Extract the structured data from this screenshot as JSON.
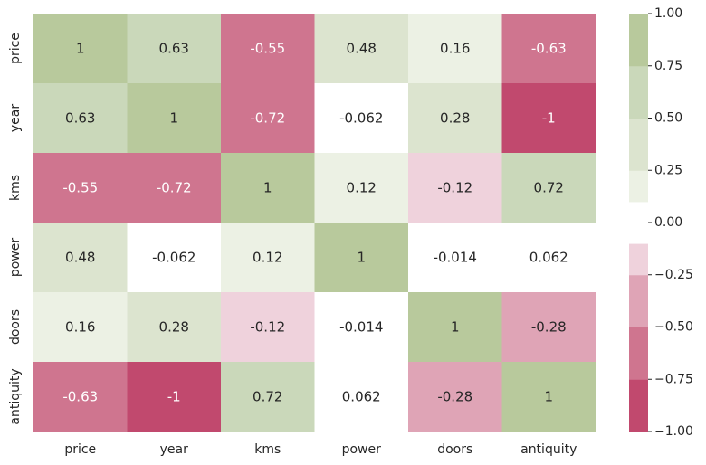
{
  "chart_data": {
    "type": "heatmap",
    "title": "",
    "xlabel": "",
    "ylabel": "",
    "x_categories": [
      "price",
      "year",
      "kms",
      "power",
      "doors",
      "antiquity"
    ],
    "y_categories": [
      "price",
      "year",
      "kms",
      "power",
      "doors",
      "antiquity"
    ],
    "values": [
      [
        1,
        0.63,
        -0.55,
        0.48,
        0.16,
        -0.63
      ],
      [
        0.63,
        1,
        -0.72,
        -0.062,
        0.28,
        -1
      ],
      [
        -0.55,
        -0.72,
        1,
        0.12,
        -0.12,
        0.72
      ],
      [
        0.48,
        -0.062,
        0.12,
        1,
        -0.014,
        0.062
      ],
      [
        0.16,
        0.28,
        -0.12,
        -0.014,
        1,
        -0.28
      ],
      [
        -0.63,
        -1,
        0.72,
        0.062,
        -0.28,
        1
      ]
    ],
    "value_labels": [
      [
        "1",
        "0.63",
        "-0.55",
        "0.48",
        "0.16",
        "-0.63"
      ],
      [
        "0.63",
        "1",
        "-0.72",
        "-0.062",
        "0.28",
        "-1"
      ],
      [
        "-0.55",
        "-0.72",
        "1",
        "0.12",
        "-0.12",
        "0.72"
      ],
      [
        "0.48",
        "-0.062",
        "0.12",
        "1",
        "-0.014",
        "0.062"
      ],
      [
        "0.16",
        "0.28",
        "-0.12",
        "-0.014",
        "1",
        "-0.28"
      ],
      [
        "-0.63",
        "-1",
        "0.72",
        "0.062",
        "-0.28",
        "1"
      ]
    ],
    "colorbar": {
      "range": [
        -1,
        1
      ],
      "ticks": [
        1.0,
        0.75,
        0.5,
        0.25,
        0.0,
        -0.25,
        -0.5,
        -0.75,
        -1.0
      ],
      "tick_labels": [
        "1.00",
        "0.75",
        "0.50",
        "0.25",
        "0.00",
        "−0.25",
        "−0.50",
        "−0.75",
        "−1.00"
      ]
    },
    "color_bins": [
      {
        "from": -1.0,
        "to": -0.75,
        "color": "#c1496e"
      },
      {
        "from": -0.75,
        "to": -0.5,
        "color": "#cf758f"
      },
      {
        "from": -0.5,
        "to": -0.25,
        "color": "#dfa4b6"
      },
      {
        "from": -0.25,
        "to": -0.1,
        "color": "#efd2dc"
      },
      {
        "from": -0.1,
        "to": 0.1,
        "color": "#ffffff"
      },
      {
        "from": 0.1,
        "to": 0.25,
        "color": "#ecf1e4"
      },
      {
        "from": 0.25,
        "to": 0.5,
        "color": "#dce4cf"
      },
      {
        "from": 0.5,
        "to": 0.75,
        "color": "#cad8ba"
      },
      {
        "from": 0.75,
        "to": 1.0,
        "color": "#b8c99c"
      }
    ],
    "annotation_colors": {
      "dark": "#262626",
      "light": "#ffffff"
    },
    "grid": false,
    "colorbar_position": "right"
  }
}
